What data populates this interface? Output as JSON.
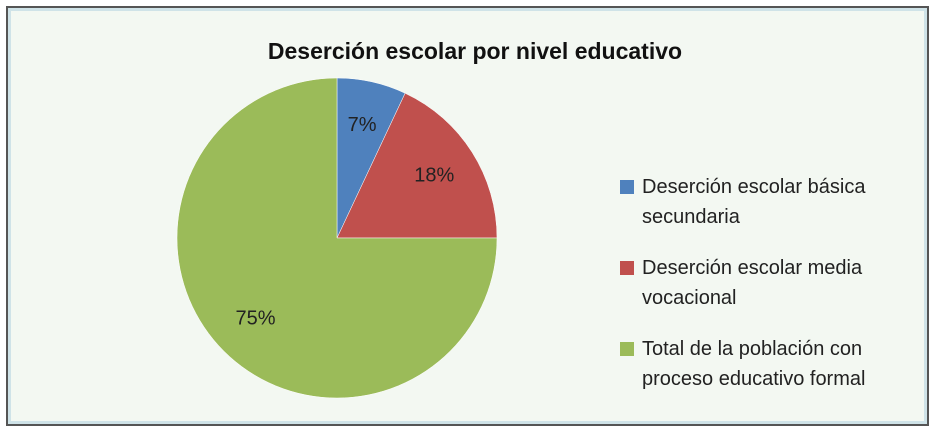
{
  "chart_data": {
    "type": "pie",
    "title": "Deserción escolar por nivel educativo",
    "categories": [
      "Deserción escolar básica secundaria",
      "Deserción escolar media vocacional",
      "Total de la población con proceso educativo formal"
    ],
    "values": [
      7,
      18,
      75
    ],
    "value_labels": [
      "7%",
      "18%",
      "75%"
    ],
    "colors": [
      "#4f81bd",
      "#c0504d",
      "#9bbb59"
    ],
    "legend": "right"
  }
}
